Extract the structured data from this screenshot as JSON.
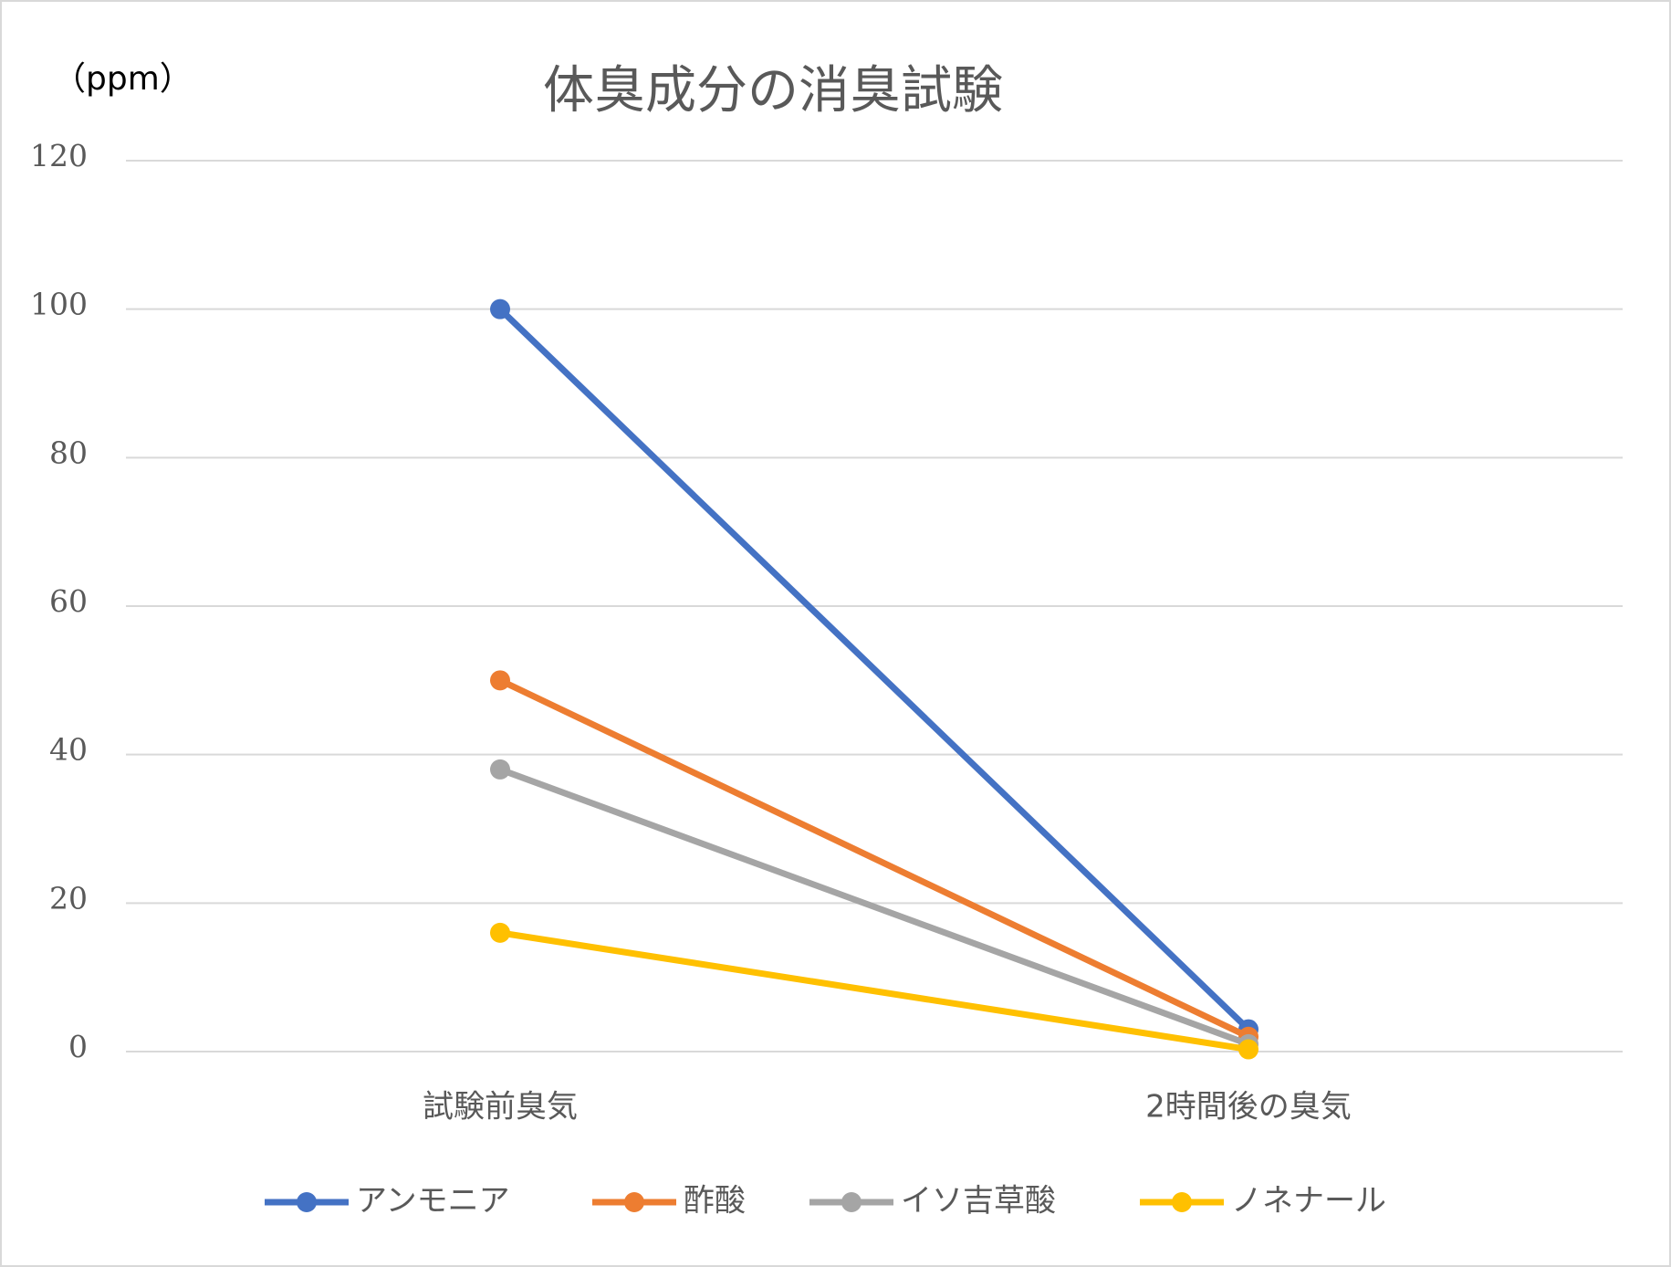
{
  "chart_data": {
    "type": "line",
    "title": "体臭成分の消臭試験",
    "y_label": "（ppm）",
    "categories": [
      "試験前臭気",
      "2時間後の臭気"
    ],
    "series": [
      {
        "name": "アンモニア",
        "color": "#4472c4",
        "values": [
          100,
          3
        ]
      },
      {
        "name": "酢酸",
        "color": "#ed7d31",
        "values": [
          50,
          2
        ]
      },
      {
        "name": "イソ吉草酸",
        "color": "#a5a5a5",
        "values": [
          38,
          1
        ]
      },
      {
        "name": "ノネナール",
        "color": "#ffc000",
        "values": [
          16,
          0.3
        ]
      }
    ],
    "ylim": [
      0,
      120
    ],
    "yticks": [
      0,
      20,
      40,
      60,
      80,
      100,
      120
    ],
    "grid": true,
    "legend": "bottom"
  }
}
